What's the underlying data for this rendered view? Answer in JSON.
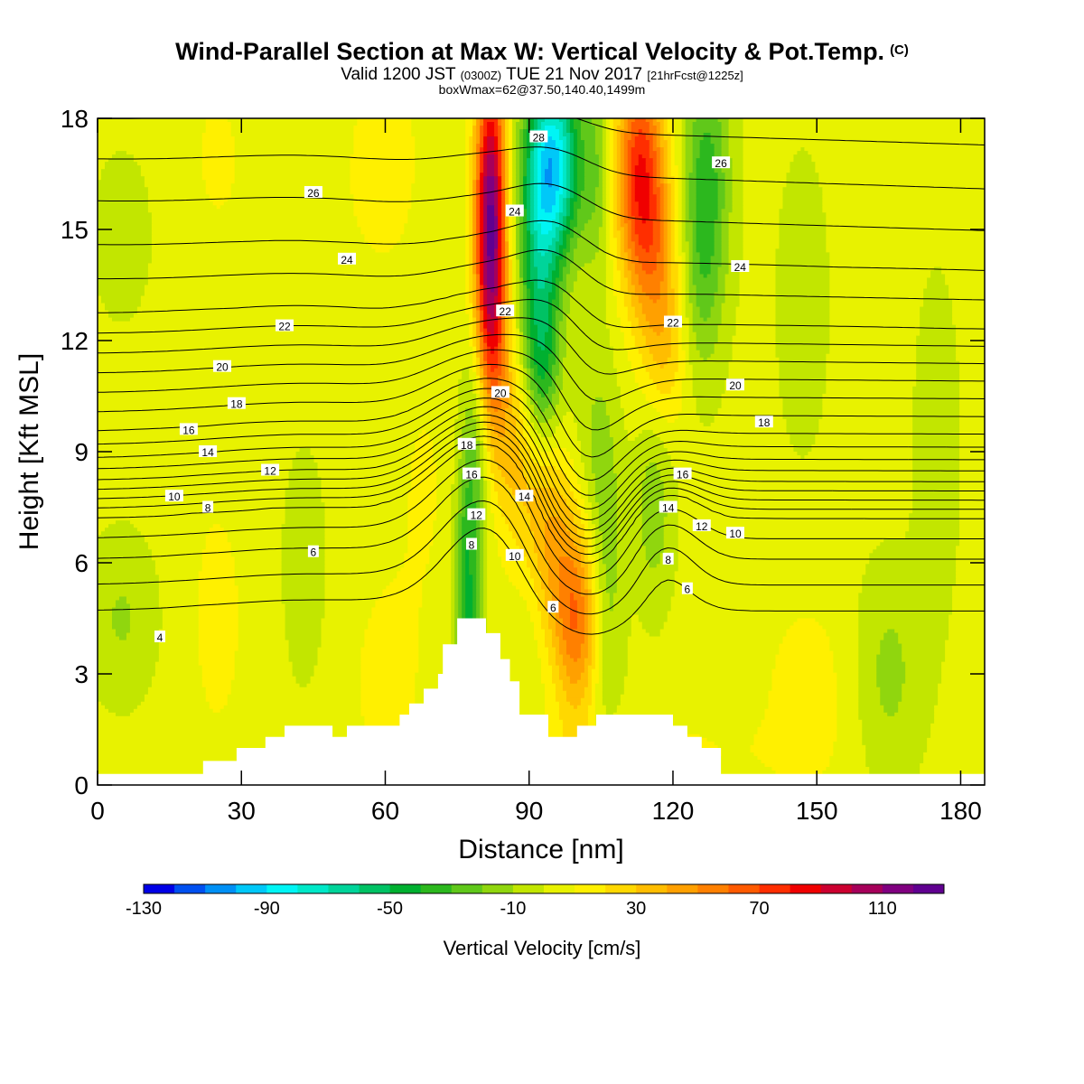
{
  "title": {
    "main": "Wind-Parallel Section at Max W: Vertical Velocity & Pot.Temp.",
    "tag": "(C)",
    "valid_pre": "Valid 1200 JST",
    "valid_z": "(0300Z)",
    "valid_date": "TUE 21 Nov 2017",
    "fcst": "[21hrFcst@1225z]",
    "boxwmax": "boxWmax=62@37.50,140.40,1499m"
  },
  "colors": {
    "palette": [
      "#0000e6",
      "#0050f0",
      "#0090f5",
      "#00c8f8",
      "#00f5f5",
      "#00e8c8",
      "#00d49a",
      "#00c264",
      "#00b030",
      "#2cb81e",
      "#60c81a",
      "#90d60e",
      "#c2e600",
      "#e8f200",
      "#fff000",
      "#ffd800",
      "#ffbd00",
      "#ffa000",
      "#ff8000",
      "#ff5a00",
      "#ff2e00",
      "#f00000",
      "#cc0030",
      "#a6005a",
      "#800080",
      "#600090"
    ]
  },
  "chart_data": {
    "type": "heatmap",
    "xlabel": "Distance [nm]",
    "ylabel": "Height [Kft MSL]",
    "xlim": [
      0,
      185
    ],
    "ylim": [
      0,
      18
    ],
    "xticks": [
      0,
      30,
      60,
      90,
      120,
      150,
      180
    ],
    "yticks": [
      0,
      3,
      6,
      9,
      12,
      15,
      18
    ],
    "colorbar": {
      "label": "Vertical Velocity [cm/s]",
      "min": -130,
      "max": 130,
      "step": 10,
      "tick_labels": [
        -130,
        -90,
        -50,
        -10,
        30,
        70,
        110
      ]
    },
    "vertical_velocity_features": [
      {
        "x": 5,
        "y": 4.5,
        "sx": 5,
        "sy": 1.5,
        "w": -14
      },
      {
        "x": 25,
        "y": 4.5,
        "sx": 5,
        "sy": 3,
        "w": 10
      },
      {
        "x": 43,
        "y": 6,
        "sx": 3,
        "sy": 2.2,
        "w": -10
      },
      {
        "x": 42,
        "y": 14.5,
        "sx": 9,
        "sy": 2.5,
        "w": 6
      },
      {
        "x": 60,
        "y": 2.8,
        "sx": 5,
        "sy": 2,
        "w": 12
      },
      {
        "x": 68,
        "y": 8,
        "sx": 5,
        "sy": 3,
        "w": 8
      },
      {
        "x": 90,
        "y": 6,
        "sx": 2,
        "sy": 3,
        "w": -5
      },
      {
        "x": 148,
        "y": 2.5,
        "sx": 7,
        "sy": 2,
        "w": 12
      },
      {
        "x": 165,
        "y": 3,
        "sx": 5,
        "sy": 2,
        "w": -16
      },
      {
        "x": 147,
        "y": 13,
        "sx": 4,
        "sy": 3,
        "w": -8
      },
      {
        "x": 5,
        "y": 14.8,
        "sx": 4,
        "sy": 1.5,
        "w": -10
      },
      {
        "x": 25,
        "y": 17,
        "sx": 3,
        "sy": 1.2,
        "w": 12
      },
      {
        "x": 60,
        "y": 17,
        "sx": 5,
        "sy": 2,
        "w": 14
      },
      {
        "x": 175,
        "y": 9,
        "sx": 3,
        "sy": 3,
        "w": -12
      },
      {
        "x": 112,
        "y": 0.9,
        "sx": 20,
        "sy": 0.8,
        "w": 10
      },
      {
        "x": 82,
        "y": 16,
        "sx": 2.3,
        "sy": 2.6,
        "w": 95
      },
      {
        "x": 82,
        "y": 12.5,
        "sx": 2.3,
        "sy": 2.5,
        "w": 55
      },
      {
        "x": 79,
        "y": 9,
        "sx": 2.2,
        "sy": 2,
        "w": -28
      },
      {
        "x": 77,
        "y": 6,
        "sx": 1.8,
        "sy": 1.8,
        "w": -35
      },
      {
        "x": 77.5,
        "y": 3.8,
        "sx": 1.8,
        "sy": 1.2,
        "w": -25
      },
      {
        "x": 95,
        "y": 16.8,
        "sx": 4,
        "sy": 1.8,
        "w": -92
      },
      {
        "x": 92,
        "y": 13.5,
        "sx": 3,
        "sy": 2.4,
        "w": -45
      },
      {
        "x": 93,
        "y": 11,
        "sx": 2.6,
        "sy": 1.5,
        "w": -25
      },
      {
        "x": 100,
        "y": 4.3,
        "sx": 3.5,
        "sy": 1.8,
        "w": 52
      },
      {
        "x": 95,
        "y": 6.5,
        "sx": 4,
        "sy": 1.8,
        "w": 28
      },
      {
        "x": 90,
        "y": 8.3,
        "sx": 4,
        "sy": 1.8,
        "w": 22
      },
      {
        "x": 86,
        "y": 10,
        "sx": 3,
        "sy": 2,
        "w": 18
      },
      {
        "x": 106,
        "y": 5.5,
        "sx": 2.5,
        "sy": 3.2,
        "w": -22
      },
      {
        "x": 116,
        "y": 7.5,
        "sx": 2.8,
        "sy": 1.8,
        "w": -20
      },
      {
        "x": 103,
        "y": 9.5,
        "sx": 3,
        "sy": 2,
        "w": -10
      },
      {
        "x": 113,
        "y": 16.5,
        "sx": 3.5,
        "sy": 2.2,
        "w": 72
      },
      {
        "x": 117,
        "y": 14,
        "sx": 3.5,
        "sy": 2.2,
        "w": 32
      },
      {
        "x": 119,
        "y": 11.5,
        "sx": 3,
        "sy": 1.5,
        "w": 14
      },
      {
        "x": 127,
        "y": 16.5,
        "sx": 3.5,
        "sy": 2.5,
        "w": -35
      },
      {
        "x": 126,
        "y": 13.5,
        "sx": 3,
        "sy": 2,
        "w": -16
      },
      {
        "x": 104,
        "y": 16.5,
        "sx": 2,
        "sy": 2,
        "w": -20
      }
    ],
    "potential_temperature_contours": {
      "units": "C",
      "levels": [
        4,
        5,
        6,
        7,
        8,
        9,
        10,
        11,
        12,
        13,
        14,
        15,
        16,
        17,
        18,
        19,
        20,
        21,
        22,
        23,
        24,
        25,
        26,
        27,
        28
      ],
      "base_profile_x0": [
        [
          4.7,
          4
        ],
        [
          6.1,
          6
        ],
        [
          7.2,
          8
        ],
        [
          7.7,
          10
        ],
        [
          8.2,
          12
        ],
        [
          8.8,
          14
        ],
        [
          9.5,
          16
        ],
        [
          10.5,
          18
        ],
        [
          11.5,
          20
        ],
        [
          12.5,
          22
        ],
        [
          14.2,
          24
        ],
        [
          16.5,
          26
        ],
        [
          18.8,
          28
        ]
      ],
      "labels": [
        {
          "text": "4",
          "x": 13,
          "y": 4.0
        },
        {
          "text": "6",
          "x": 45,
          "y": 6.3
        },
        {
          "text": "8",
          "x": 23,
          "y": 7.5
        },
        {
          "text": "10",
          "x": 16,
          "y": 7.8
        },
        {
          "text": "12",
          "x": 36,
          "y": 8.5
        },
        {
          "text": "14",
          "x": 23,
          "y": 9.0
        },
        {
          "text": "16",
          "x": 19,
          "y": 9.6
        },
        {
          "text": "18",
          "x": 29,
          "y": 10.3
        },
        {
          "text": "20",
          "x": 26,
          "y": 11.3
        },
        {
          "text": "22",
          "x": 39,
          "y": 12.4
        },
        {
          "text": "24",
          "x": 52,
          "y": 14.2
        },
        {
          "text": "26",
          "x": 45,
          "y": 16.0
        },
        {
          "text": "28",
          "x": 92,
          "y": 17.5
        },
        {
          "text": "24",
          "x": 87,
          "y": 15.5
        },
        {
          "text": "22",
          "x": 85,
          "y": 12.8
        },
        {
          "text": "20",
          "x": 84,
          "y": 10.6
        },
        {
          "text": "18",
          "x": 77,
          "y": 9.2
        },
        {
          "text": "16",
          "x": 78,
          "y": 8.4
        },
        {
          "text": "14",
          "x": 89,
          "y": 7.8
        },
        {
          "text": "12",
          "x": 79,
          "y": 7.3
        },
        {
          "text": "8",
          "x": 78,
          "y": 6.5
        },
        {
          "text": "10",
          "x": 87,
          "y": 6.2
        },
        {
          "text": "6",
          "x": 95,
          "y": 4.8
        },
        {
          "text": "26",
          "x": 130,
          "y": 16.8
        },
        {
          "text": "24",
          "x": 134,
          "y": 14.0
        },
        {
          "text": "22",
          "x": 120,
          "y": 12.5
        },
        {
          "text": "20",
          "x": 133,
          "y": 10.8
        },
        {
          "text": "18",
          "x": 139,
          "y": 9.8
        },
        {
          "text": "16",
          "x": 122,
          "y": 8.4
        },
        {
          "text": "14",
          "x": 119,
          "y": 7.5
        },
        {
          "text": "12",
          "x": 126,
          "y": 7.0
        },
        {
          "text": "10",
          "x": 133,
          "y": 6.8
        },
        {
          "text": "8",
          "x": 119,
          "y": 6.1
        },
        {
          "text": "6",
          "x": 123,
          "y": 5.3
        }
      ]
    },
    "terrain_profile": [
      [
        0,
        0.3
      ],
      [
        22,
        0.3
      ],
      [
        22,
        0.65
      ],
      [
        29,
        0.65
      ],
      [
        29,
        1.0
      ],
      [
        35,
        1.0
      ],
      [
        35,
        1.3
      ],
      [
        39,
        1.3
      ],
      [
        39,
        1.6
      ],
      [
        49,
        1.6
      ],
      [
        49,
        1.3
      ],
      [
        52,
        1.3
      ],
      [
        52,
        1.6
      ],
      [
        63,
        1.6
      ],
      [
        63,
        1.9
      ],
      [
        65,
        1.9
      ],
      [
        65,
        2.2
      ],
      [
        68,
        2.2
      ],
      [
        68,
        2.6
      ],
      [
        71,
        2.6
      ],
      [
        71,
        3.0
      ],
      [
        72,
        3.0
      ],
      [
        72,
        3.8
      ],
      [
        75,
        3.8
      ],
      [
        75,
        4.5
      ],
      [
        81,
        4.5
      ],
      [
        81,
        4.1
      ],
      [
        84,
        4.1
      ],
      [
        84,
        3.4
      ],
      [
        86,
        3.4
      ],
      [
        86,
        2.8
      ],
      [
        88,
        2.8
      ],
      [
        88,
        1.9
      ],
      [
        94,
        1.9
      ],
      [
        94,
        1.3
      ],
      [
        100,
        1.3
      ],
      [
        100,
        1.6
      ],
      [
        104,
        1.6
      ],
      [
        104,
        1.9
      ],
      [
        120,
        1.9
      ],
      [
        120,
        1.6
      ],
      [
        123,
        1.6
      ],
      [
        123,
        1.3
      ],
      [
        126,
        1.3
      ],
      [
        126,
        1.0
      ],
      [
        130,
        1.0
      ],
      [
        130,
        0.3
      ],
      [
        185,
        0.3
      ]
    ]
  }
}
